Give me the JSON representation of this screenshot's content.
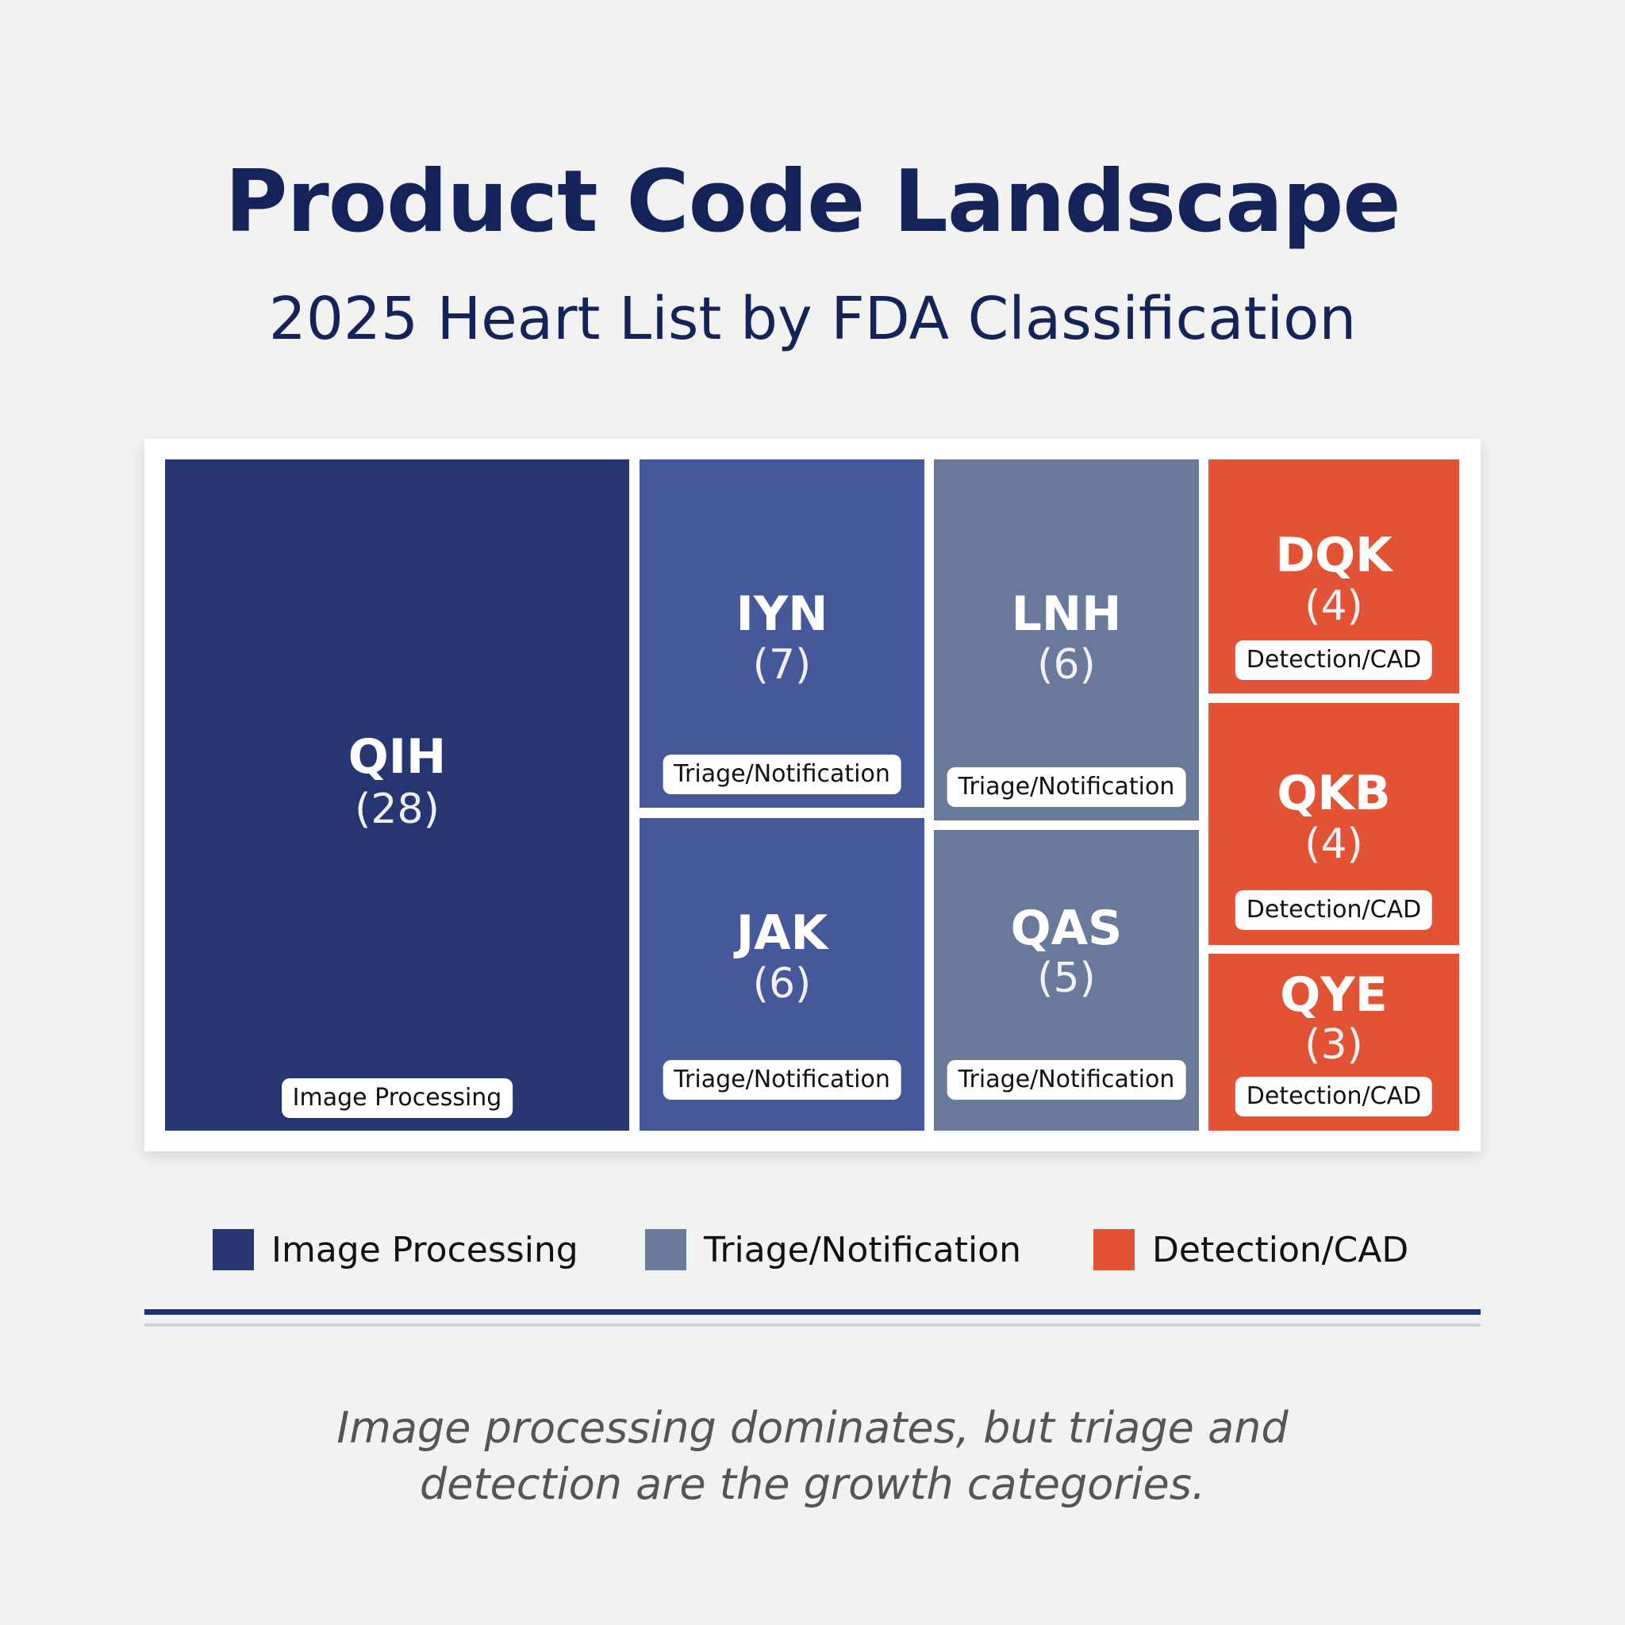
{
  "header": {
    "title": "Product Code Landscape",
    "subtitle": "2025 Heart List by FDA Classification"
  },
  "colors": {
    "Image Processing": "#253673",
    "Triage/Notification": "#45599a",
    "Triage/Notification (2)": "#68799b",
    "Detection/CAD": "#e25234",
    "title": "#14245a",
    "divider": "#1f3271"
  },
  "chart_data": {
    "type": "treemap",
    "title": "Product Code Landscape",
    "subtitle": "2025 Heart List by FDA Classification",
    "legend_position": "bottom",
    "items": [
      {
        "code": "QIH",
        "count": 28,
        "count_label": "(28)",
        "category": "Image Processing"
      },
      {
        "code": "IYN",
        "count": 7,
        "count_label": "(7)",
        "category": "Triage/Notification"
      },
      {
        "code": "JAK",
        "count": 6,
        "count_label": "(6)",
        "category": "Triage/Notification"
      },
      {
        "code": "LNH",
        "count": 6,
        "count_label": "(6)",
        "category": "Triage/Notification"
      },
      {
        "code": "QAS",
        "count": 5,
        "count_label": "(5)",
        "category": "Triage/Notification"
      },
      {
        "code": "DQK",
        "count": 4,
        "count_label": "(4)",
        "category": "Detection/CAD"
      },
      {
        "code": "QKB",
        "count": 4,
        "count_label": "(4)",
        "category": "Detection/CAD"
      },
      {
        "code": "QYE",
        "count": 3,
        "count_label": "(3)",
        "category": "Detection/CAD"
      }
    ],
    "legend": [
      {
        "label": "Image Processing",
        "color": "#253673"
      },
      {
        "label": "Triage/Notification",
        "color": "#68799b"
      },
      {
        "label": "Detection/CAD",
        "color": "#e25234"
      }
    ]
  },
  "caption": {
    "line1": "Image processing dominates, but triage and",
    "line2": "detection are the growth categories."
  }
}
